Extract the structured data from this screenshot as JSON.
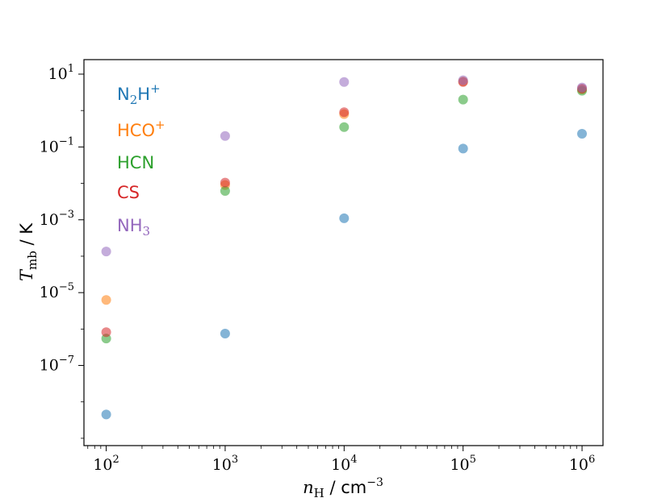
{
  "chart_data": {
    "type": "scatter",
    "x_scale": "log",
    "y_scale": "log",
    "xlim": [
      65,
      1500000
    ],
    "ylim": [
      6.3e-10,
      25
    ],
    "x_ticks": [
      100,
      1000,
      10000,
      100000,
      1000000
    ],
    "x_tick_labels": [
      {
        "base": "10",
        "exp": "2"
      },
      {
        "base": "10",
        "exp": "3"
      },
      {
        "base": "10",
        "exp": "4"
      },
      {
        "base": "10",
        "exp": "5"
      },
      {
        "base": "10",
        "exp": "6"
      }
    ],
    "y_ticks": [
      1e-07,
      1e-05,
      0.001,
      0.1,
      10
    ],
    "y_tick_labels": [
      {
        "base": "10",
        "exp": "−7"
      },
      {
        "base": "10",
        "exp": "−5"
      },
      {
        "base": "10",
        "exp": "−3"
      },
      {
        "base": "10",
        "exp": "−1"
      },
      {
        "base": "10",
        "exp": "1"
      }
    ],
    "xlabel": {
      "var": "n",
      "sub": "H",
      "sep": " / ",
      "unit": "cm",
      "unit_exp": "−3"
    },
    "ylabel": {
      "var": "T",
      "sub": "mb",
      "sep": " / ",
      "unit": "K"
    },
    "grid": false,
    "legend_position": "top-left",
    "x": [
      100,
      1000,
      10000,
      100000,
      1000000
    ],
    "series": [
      {
        "name": "N2H+",
        "label": {
          "main": "N",
          "sub": "2",
          "rest": "H",
          "sup": "+"
        },
        "color": "#1f77b4",
        "values": [
          4.5e-09,
          7.5e-07,
          0.0011,
          0.09,
          0.23
        ]
      },
      {
        "name": "HCO+",
        "label": {
          "main": "HCO",
          "sub": "",
          "rest": "",
          "sup": "+"
        },
        "color": "#ff7f0e",
        "values": [
          6.3e-06,
          0.009,
          0.8,
          6.3,
          3.8
        ]
      },
      {
        "name": "HCN",
        "label": {
          "main": "HCN",
          "sub": "",
          "rest": "",
          "sup": ""
        },
        "color": "#2ca02c",
        "values": [
          5.5e-07,
          0.0062,
          0.35,
          2.0,
          3.5
        ]
      },
      {
        "name": "CS",
        "label": {
          "main": "CS",
          "sub": "",
          "rest": "",
          "sup": ""
        },
        "color": "#d62728",
        "values": [
          8.2e-07,
          0.0105,
          0.9,
          6.1,
          4.0
        ]
      },
      {
        "name": "NH3",
        "label": {
          "main": "NH",
          "sub": "3",
          "rest": "",
          "sup": ""
        },
        "color": "#9467bd",
        "values": [
          0.000135,
          0.2,
          6.1,
          6.8,
          4.3
        ]
      }
    ]
  }
}
